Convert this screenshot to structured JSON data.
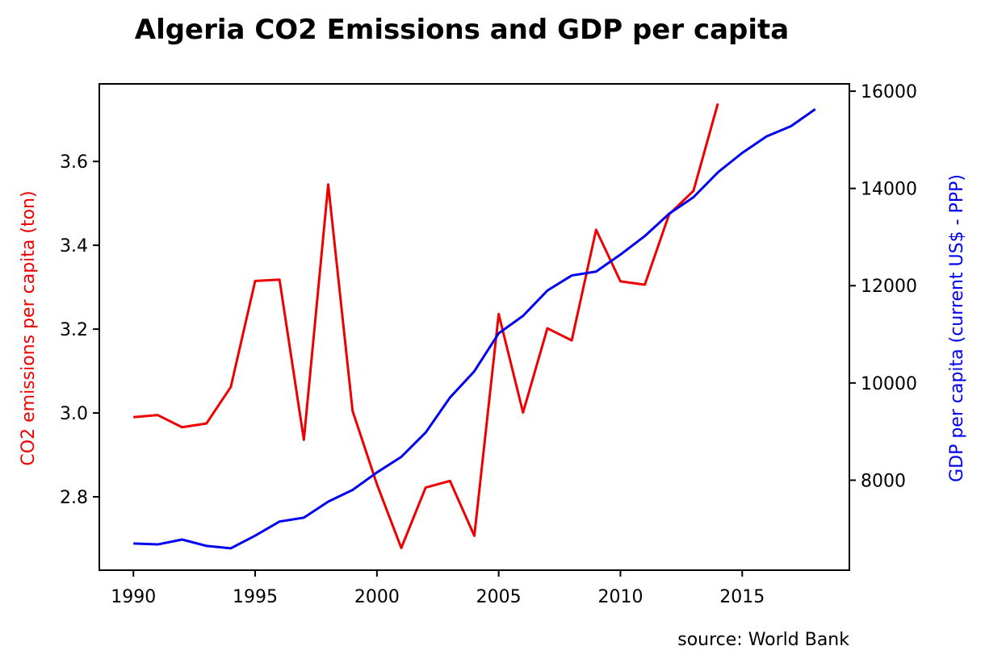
{
  "chart_data": {
    "type": "line",
    "title": "Algeria CO2 Emissions and GDP per capita",
    "source": "source: World Bank",
    "xlabel": "",
    "x_ticks": [
      1990,
      1995,
      2000,
      2005,
      2010,
      2015
    ],
    "xlim": [
      1988.6,
      2019.4
    ],
    "grid": false,
    "legend": "none",
    "left_axis": {
      "label": "CO2 emissions per capita (ton)",
      "color": "#ee0000",
      "ylim": [
        2.625,
        3.785
      ],
      "ticks": [
        2.8,
        3.0,
        3.2,
        3.4,
        3.6
      ],
      "tick_labels": [
        "2.8",
        "3.0",
        "3.2",
        "3.4",
        "3.6"
      ]
    },
    "right_axis": {
      "label": "GDP per capita (current US$ - PPP)",
      "color": "#0000ee",
      "ylim": [
        6150,
        16150
      ],
      "ticks": [
        8000,
        10000,
        12000,
        14000,
        16000
      ],
      "tick_labels": [
        "8000",
        "10000",
        "12000",
        "14000",
        "16000"
      ]
    },
    "series": [
      {
        "axis": "left",
        "color": "#ee0000",
        "x": [
          1990,
          1991,
          1992,
          1993,
          1994,
          1995,
          1996,
          1997,
          1998,
          1999,
          2000,
          2001,
          2002,
          2003,
          2004,
          2005,
          2006,
          2007,
          2008,
          2009,
          2010,
          2011,
          2012,
          2013,
          2014
        ],
        "values": [
          2.99,
          2.995,
          2.966,
          2.975,
          3.062,
          3.315,
          3.318,
          2.936,
          3.545,
          3.005,
          2.83,
          2.678,
          2.822,
          2.838,
          2.707,
          3.236,
          3.001,
          3.202,
          3.173,
          3.437,
          3.314,
          3.306,
          3.474,
          3.53,
          3.738
        ]
      },
      {
        "axis": "right",
        "color": "#0000ee",
        "x": [
          1990,
          1991,
          1992,
          1993,
          1994,
          1995,
          1996,
          1997,
          1998,
          1999,
          2000,
          2001,
          2002,
          2003,
          2004,
          2005,
          2006,
          2007,
          2008,
          2009,
          2010,
          2011,
          2012,
          2013,
          2014,
          2015,
          2016,
          2017,
          2018
        ],
        "values": [
          6700,
          6680,
          6780,
          6650,
          6600,
          6860,
          7150,
          7230,
          7560,
          7800,
          8160,
          8480,
          8980,
          9700,
          10240,
          11020,
          11380,
          11900,
          12210,
          12290,
          12640,
          13020,
          13480,
          13820,
          14330,
          14730,
          15070,
          15280,
          15630
        ]
      }
    ]
  }
}
